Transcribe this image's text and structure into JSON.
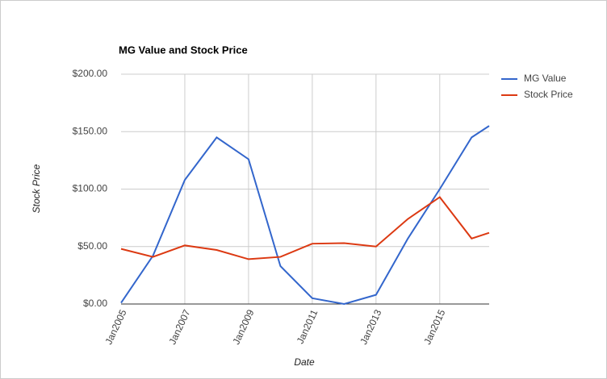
{
  "chart_data": {
    "type": "line",
    "title": "MG Value and Stock Price",
    "x_label": "Date",
    "y_label": "Stock Price",
    "x": [
      2005,
      2006,
      2007,
      2008,
      2009,
      2010,
      2011,
      2012,
      2013,
      2014,
      2015,
      2016,
      2016.55
    ],
    "series": [
      {
        "name": "MG Value",
        "color": "#3366cc",
        "values": [
          1,
          42,
          108,
          145,
          126,
          33,
          5,
          0,
          8,
          57,
          100,
          145,
          155
        ]
      },
      {
        "name": "Stock Price",
        "color": "#dc3912",
        "values": [
          48,
          41,
          51,
          47,
          39,
          41,
          52.5,
          53,
          50,
          74,
          93,
          57,
          62
        ]
      }
    ],
    "xlim": [
      2005,
      2016.55
    ],
    "xticks": [
      {
        "value": 2005,
        "label": "Jan2005"
      },
      {
        "value": 2007,
        "label": "Jan2007"
      },
      {
        "value": 2009,
        "label": "Jan2009"
      },
      {
        "value": 2011,
        "label": "Jan2011"
      },
      {
        "value": 2013,
        "label": "Jan2013"
      },
      {
        "value": 2015,
        "label": "Jan2015"
      }
    ],
    "ylim": [
      0,
      200
    ],
    "yticks": [
      {
        "value": 0,
        "label": "$0.00"
      },
      {
        "value": 50,
        "label": "$50.00"
      },
      {
        "value": 100,
        "label": "$100.00"
      },
      {
        "value": 150,
        "label": "$150.00"
      },
      {
        "value": 200,
        "label": "$200.00"
      }
    ],
    "grid": true,
    "legend": "right"
  }
}
